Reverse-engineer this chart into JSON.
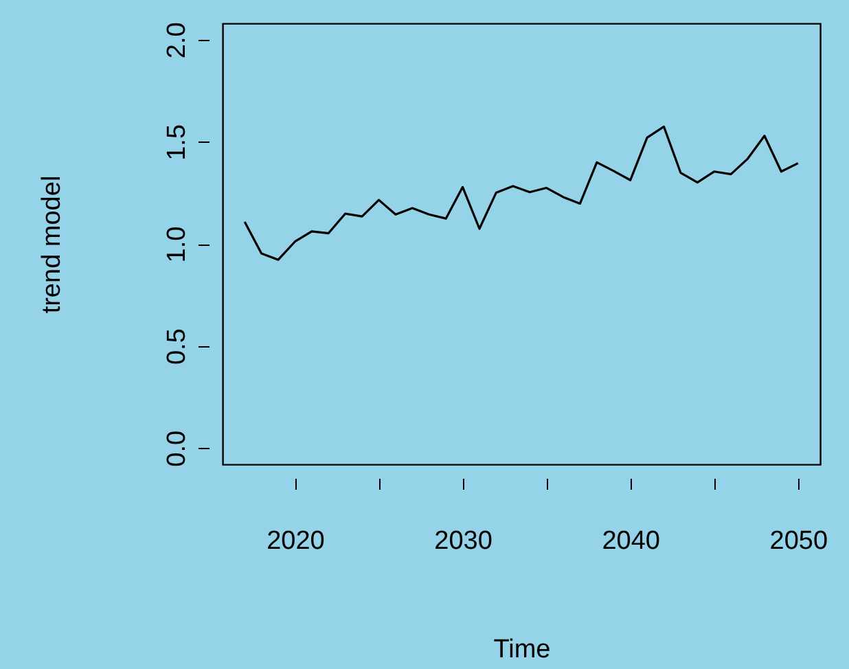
{
  "chart_data": {
    "type": "line",
    "xlabel": "Time",
    "ylabel": "trend model",
    "x": [
      2017,
      2018,
      2019,
      2020,
      2021,
      2022,
      2023,
      2024,
      2025,
      2026,
      2027,
      2028,
      2029,
      2030,
      2031,
      2032,
      2033,
      2034,
      2035,
      2036,
      2037,
      2038,
      2039,
      2040,
      2041,
      2042,
      2043,
      2044,
      2045,
      2046,
      2047,
      2048,
      2049,
      2050
    ],
    "series": [
      {
        "color": "#000000",
        "values": [
          1.108,
          0.953,
          0.922,
          1.011,
          1.061,
          1.052,
          1.148,
          1.134,
          1.215,
          1.144,
          1.175,
          1.144,
          1.124,
          1.278,
          1.074,
          1.251,
          1.283,
          1.253,
          1.274,
          1.229,
          1.197,
          1.399,
          1.357,
          1.312,
          1.52,
          1.574,
          1.348,
          1.301,
          1.354,
          1.341,
          1.417,
          1.529,
          1.354,
          1.395
        ]
      }
    ],
    "xlim": [
      2015.68,
      2051.32
    ],
    "ylim": [
      -0.08,
      2.08
    ],
    "xticks": [
      2020,
      {
        "value": 2025,
        "label": null
      },
      2030,
      {
        "value": 2035,
        "label": null
      },
      2040,
      {
        "value": 2045,
        "label": null
      },
      2050
    ],
    "yticks": [
      {
        "value": 0,
        "label": "0.0"
      },
      {
        "value": 0.5,
        "label": "0.5"
      },
      {
        "value": 1,
        "label": "1.0"
      },
      {
        "value": 1.5,
        "label": "1.5"
      },
      {
        "value": 2,
        "label": "2.0"
      }
    ],
    "grid": false,
    "marker": "none",
    "line_style": "solid"
  }
}
